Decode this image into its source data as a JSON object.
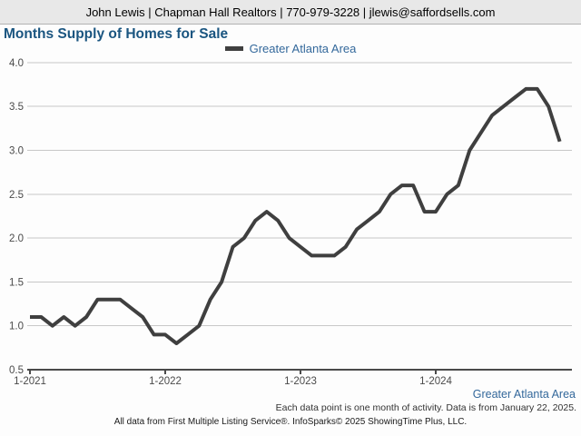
{
  "header": {
    "contact_line": "John Lewis | Chapman Hall Realtors | 770-979-3228 | jlewis@saffordsells.com"
  },
  "title": "Months Supply of Homes for Sale",
  "legend": {
    "label": "Greater Atlanta Area"
  },
  "chart_data": {
    "type": "line",
    "title": "Months Supply of Homes for Sale",
    "xlabel": "",
    "ylabel": "",
    "ylim": [
      0.5,
      4.0
    ],
    "y_ticks": [
      0.5,
      1.0,
      1.5,
      2.0,
      2.5,
      3.0,
      3.5,
      4.0
    ],
    "x_tick_labels": [
      "1-2021",
      "1-2022",
      "1-2023",
      "1-2024"
    ],
    "grid": true,
    "legend_position": "top-center",
    "categories": [
      "2021-01",
      "2021-02",
      "2021-03",
      "2021-04",
      "2021-05",
      "2021-06",
      "2021-07",
      "2021-08",
      "2021-09",
      "2021-10",
      "2021-11",
      "2021-12",
      "2022-01",
      "2022-02",
      "2022-03",
      "2022-04",
      "2022-05",
      "2022-06",
      "2022-07",
      "2022-08",
      "2022-09",
      "2022-10",
      "2022-11",
      "2022-12",
      "2023-01",
      "2023-02",
      "2023-03",
      "2023-04",
      "2023-05",
      "2023-06",
      "2023-07",
      "2023-08",
      "2023-09",
      "2023-10",
      "2023-11",
      "2023-12",
      "2024-01",
      "2024-02",
      "2024-03",
      "2024-04",
      "2024-05",
      "2024-06",
      "2024-07",
      "2024-08",
      "2024-09",
      "2024-10",
      "2024-11",
      "2024-12"
    ],
    "series": [
      {
        "name": "Greater Atlanta Area",
        "color": "#3f3f3f",
        "values": [
          1.1,
          1.1,
          1.0,
          1.1,
          1.0,
          1.1,
          1.3,
          1.3,
          1.3,
          1.2,
          1.1,
          0.9,
          0.9,
          0.8,
          0.9,
          1.0,
          1.3,
          1.5,
          1.9,
          2.0,
          2.2,
          2.3,
          2.2,
          2.0,
          1.9,
          1.8,
          1.8,
          1.8,
          1.9,
          2.1,
          2.2,
          2.3,
          2.5,
          2.6,
          2.6,
          2.3,
          2.3,
          2.5,
          2.6,
          3.0,
          3.2,
          3.4,
          3.5,
          3.6,
          3.7,
          3.7,
          3.5,
          3.1
        ]
      }
    ]
  },
  "footer": {
    "series_label": "Greater Atlanta Area",
    "note": "Each data point is one month of activity. Data is from January 22, 2025.",
    "attribution": "All data from First Multiple Listing Service®. InfoSparks© 2025 ShowingTime Plus, LLC."
  },
  "colors": {
    "title_blue": "#1a5580",
    "label_blue": "#33689b",
    "line": "#3f3f3f",
    "header_bg": "#e8e8e8",
    "grid": "#c8c8c8",
    "axis": "#4a4a4a"
  }
}
